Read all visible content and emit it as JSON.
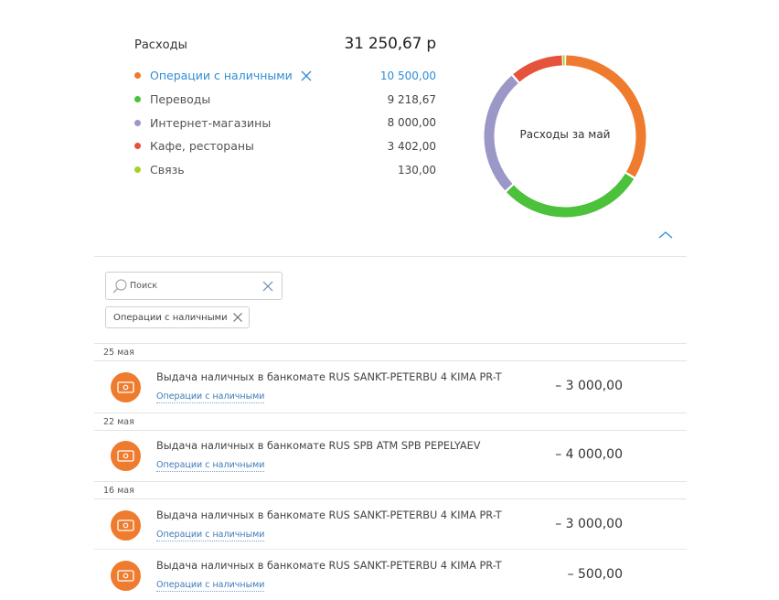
{
  "summary": {
    "label": "Расходы",
    "total": "31 250,67 р"
  },
  "categories": [
    {
      "name": "Операции с наличными",
      "value": "10 500,00",
      "color": "#ef7b2e",
      "active": true
    },
    {
      "name": "Переводы",
      "value": "9 218,67",
      "color": "#4cc13b"
    },
    {
      "name": "Интернет-магазины",
      "value": "8 000,00",
      "color": "#9b97c7"
    },
    {
      "name": "Кафе, рестораны",
      "value": "3 402,00",
      "color": "#e5533a"
    },
    {
      "name": "Связь",
      "value": "130,00",
      "color": "#a6d12b"
    }
  ],
  "chart_data": {
    "type": "pie",
    "title": "Расходы за май",
    "categories": [
      "Операции с наличными",
      "Переводы",
      "Интернет-магазины",
      "Кафе, рестораны",
      "Связь"
    ],
    "values": [
      10500.0,
      9218.67,
      8000.0,
      3402.0,
      130.0
    ],
    "colors": [
      "#ef7b2e",
      "#4cc13b",
      "#9b97c7",
      "#e5533a",
      "#a6d12b"
    ]
  },
  "search": {
    "placeholder": "Поиск"
  },
  "filter_chip": {
    "label": "Операции с наличными"
  },
  "groups": [
    {
      "date": "25 мая",
      "transactions": [
        {
          "title": "Выдача наличных в банкомате RUS SANKT-PETERBU 4 KIMA PR-T",
          "category": "Операции с наличными",
          "amount": "– 3 000,00"
        }
      ]
    },
    {
      "date": "22 мая",
      "transactions": [
        {
          "title": "Выдача наличных в банкомате RUS SPB ATM SPB PEPELYAEV",
          "category": "Операции с наличными",
          "amount": "– 4 000,00"
        }
      ]
    },
    {
      "date": "16 мая",
      "transactions": [
        {
          "title": "Выдача наличных в банкомате RUS SANKT-PETERBU 4 KIMA PR-T",
          "category": "Операции с наличными",
          "amount": "– 3 000,00"
        },
        {
          "title": "Выдача наличных в банкомате RUS SANKT-PETERBU 4 KIMA PR-T",
          "category": "Операции с наличными",
          "amount": "– 500,00"
        }
      ]
    }
  ]
}
